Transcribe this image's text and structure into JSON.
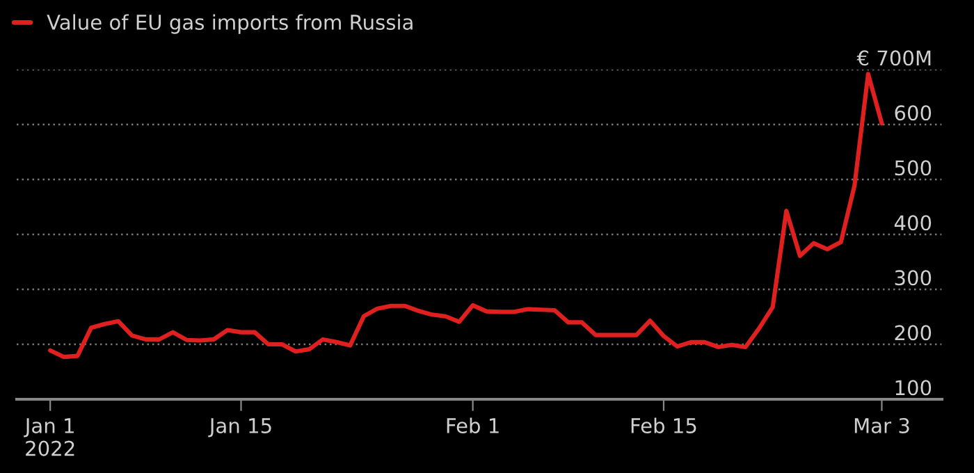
{
  "chart_data": {
    "type": "line",
    "x": [
      "2022-01-01",
      "2022-01-02",
      "2022-01-03",
      "2022-01-04",
      "2022-01-05",
      "2022-01-06",
      "2022-01-07",
      "2022-01-08",
      "2022-01-09",
      "2022-01-10",
      "2022-01-11",
      "2022-01-12",
      "2022-01-13",
      "2022-01-14",
      "2022-01-15",
      "2022-01-16",
      "2022-01-17",
      "2022-01-18",
      "2022-01-19",
      "2022-01-20",
      "2022-01-21",
      "2022-01-22",
      "2022-01-23",
      "2022-01-24",
      "2022-01-25",
      "2022-01-26",
      "2022-01-27",
      "2022-01-28",
      "2022-01-29",
      "2022-01-30",
      "2022-01-31",
      "2022-02-01",
      "2022-02-02",
      "2022-02-03",
      "2022-02-04",
      "2022-02-05",
      "2022-02-06",
      "2022-02-07",
      "2022-02-08",
      "2022-02-09",
      "2022-02-10",
      "2022-02-11",
      "2022-02-12",
      "2022-02-13",
      "2022-02-14",
      "2022-02-15",
      "2022-02-16",
      "2022-02-17",
      "2022-02-18",
      "2022-02-19",
      "2022-02-20",
      "2022-02-21",
      "2022-02-22",
      "2022-02-23",
      "2022-02-24",
      "2022-02-25",
      "2022-02-26",
      "2022-02-27",
      "2022-02-28",
      "2022-03-01",
      "2022-03-02",
      "2022-03-03"
    ],
    "series": [
      {
        "name": "Value of EU gas imports from Russia",
        "color": "#e0201f",
        "values": [
          189,
          177,
          179,
          230,
          237,
          242,
          216,
          209,
          209,
          222,
          208,
          207,
          209,
          226,
          222,
          222,
          200,
          200,
          187,
          191,
          209,
          204,
          198,
          251,
          265,
          270,
          270,
          261,
          254,
          251,
          241,
          271,
          260,
          259,
          259,
          264,
          263,
          262,
          240,
          240,
          217,
          217,
          217,
          217,
          243,
          215,
          196,
          204,
          204,
          195,
          199,
          195,
          229,
          268,
          443,
          361,
          384,
          373,
          386,
          489,
          692,
          602
        ]
      }
    ],
    "xlim": [
      "2021-12-29T13:00",
      "2022-03-07T10:00"
    ],
    "xticks": [
      {
        "value": "2022-01-01",
        "label": "Jan 1\n2022"
      },
      {
        "value": "2022-01-15",
        "label": "Jan 15"
      },
      {
        "value": "2022-02-01",
        "label": "Feb 1"
      },
      {
        "value": "2022-02-15",
        "label": "Feb 15"
      },
      {
        "value": "2022-03-03",
        "label": "Mar 3"
      }
    ],
    "ylim": [
      100,
      700
    ],
    "yticks": [
      100,
      200,
      300,
      400,
      500,
      600,
      {
        "value": 700,
        "label": "€ 700M"
      }
    ],
    "grid": "y",
    "legend": "top left",
    "line_style": "solid",
    "marker": "none"
  }
}
